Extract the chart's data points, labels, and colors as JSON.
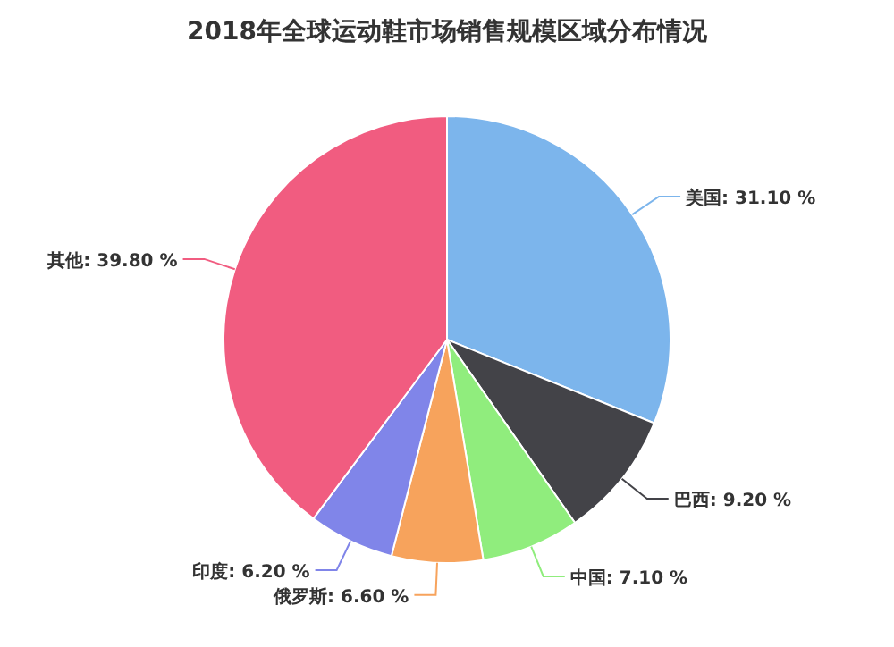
{
  "chart_data": {
    "type": "pie",
    "title": "2018年全球运动鞋市场销售规模区域分布情况",
    "categories": [
      "美国",
      "巴西",
      "中国",
      "俄罗斯",
      "印度",
      "其他"
    ],
    "values": [
      31.1,
      9.2,
      7.1,
      6.6,
      6.2,
      39.8
    ],
    "value_labels": [
      "31.10 %",
      "9.20 %",
      "7.10 %",
      "6.60 %",
      "6.20 %",
      "39.80 %"
    ],
    "colors": [
      "#7cb5ec",
      "#434348",
      "#90ed7d",
      "#f7a35c",
      "#8085e9",
      "#f15c80"
    ],
    "legend": false
  }
}
